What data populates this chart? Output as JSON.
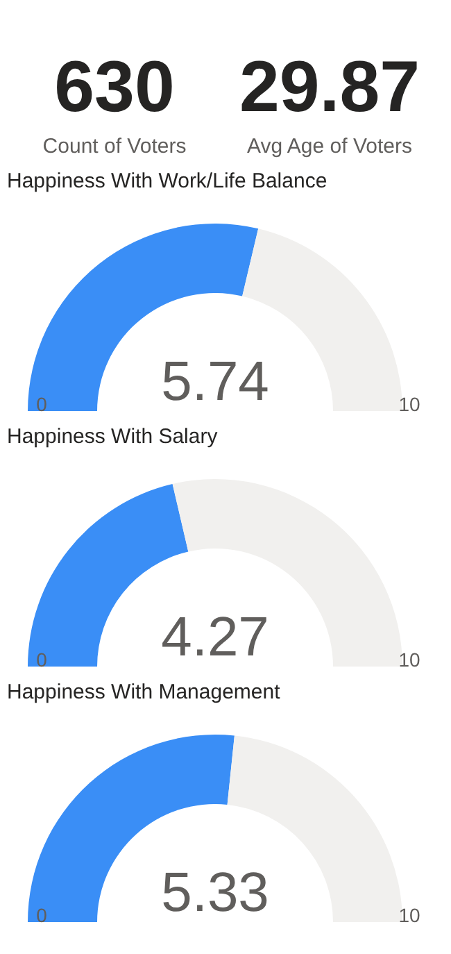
{
  "chart_data": [
    {
      "type": "other",
      "categories": [
        "Count of Voters",
        "Avg Age of Voters"
      ],
      "values": [
        630,
        29.87
      ],
      "value_labels": [
        "630",
        "29.87"
      ]
    },
    {
      "type": "donut",
      "title": "Happiness With Work/Life Balance",
      "categories": [
        null,
        null
      ],
      "values": [
        57.4,
        42.6
      ],
      "colors": [
        "#3a8ef6",
        "#f1f0ee"
      ],
      "annotations": [
        "5.74",
        "0",
        "10"
      ]
    },
    {
      "type": "donut",
      "title": "Happiness With Salary",
      "categories": [
        null,
        null
      ],
      "values": [
        42.7,
        57.3
      ],
      "colors": [
        "#3a8ef6",
        "#f1f0ee"
      ],
      "annotations": [
        "4.27",
        "0",
        "10"
      ]
    },
    {
      "type": "donut",
      "title": "Happiness With Management",
      "categories": [
        null,
        null
      ],
      "values": [
        53.3,
        46.7
      ],
      "colors": [
        "#3a8ef6",
        "#f1f0ee"
      ],
      "annotations": [
        "5.33",
        "0",
        "10"
      ]
    }
  ]
}
